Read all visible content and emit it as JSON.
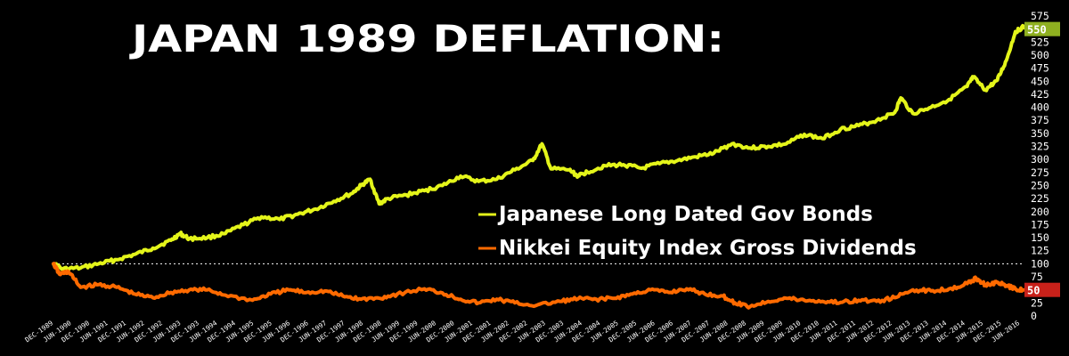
{
  "chart_data": {
    "type": "line",
    "title": "JAPAN 1989 DEFLATION:",
    "xlabel": "",
    "ylabel": "",
    "ylim": [
      0,
      575
    ],
    "yticks": [
      0,
      25,
      50,
      75,
      100,
      125,
      150,
      175,
      200,
      225,
      250,
      275,
      300,
      325,
      350,
      375,
      400,
      425,
      450,
      475,
      500,
      525,
      550,
      575
    ],
    "reference_line": 100,
    "x_tick_labels": [
      "DEC-1989",
      "JUN-1990",
      "DEC-1990",
      "JUN-1991",
      "DEC-1991",
      "JUN-1992",
      "DEC-1992",
      "JUN-1993",
      "DEC-1993",
      "JUN-1994",
      "DEC-1994",
      "JUN-1995",
      "DEC-1995",
      "JUN-1996",
      "DEC-1996",
      "JUN-1997",
      "DEC-1997",
      "JUN-1998",
      "DEC-1998",
      "JUN-1999",
      "DEC-1999",
      "JUN-2000",
      "DEC-2000",
      "JUN-2001",
      "DEC-2001",
      "JUN-2002",
      "DEC-2002",
      "JUN-2003",
      "DEC-2003",
      "JUN-2004",
      "DEC-2004",
      "JUN-2005",
      "DEC-2005",
      "JUN-2006",
      "DEC-2006",
      "JUN-2007",
      "DEC-2007",
      "JUN-2008",
      "DEC-2008",
      "JUN-2009",
      "DEC-2009",
      "JUN-2010",
      "DEC-2010",
      "JUN-2011",
      "DEC-2011",
      "JUN-2012",
      "DEC-2012",
      "JUN-2013",
      "DEC-2013",
      "JUN-2014",
      "DEC-2014",
      "JUN-2015",
      "DEC-2015",
      "JUN-2016"
    ],
    "x_range": [
      "DEC-1989",
      "OCT-2016"
    ],
    "grid": false,
    "legend_position": "center-right",
    "series": [
      {
        "name": "Japanese Long Dated Gov Bonds",
        "color": "#e4f51a",
        "end_label": "550",
        "points": [
          [
            "1989-12",
            100
          ],
          [
            "1990-03",
            90
          ],
          [
            "1990-09",
            92
          ],
          [
            "1991-03",
            100
          ],
          [
            "1991-09",
            108
          ],
          [
            "1992-03",
            118
          ],
          [
            "1992-09",
            130
          ],
          [
            "1993-03",
            145
          ],
          [
            "1993-06",
            158
          ],
          [
            "1993-09",
            148
          ],
          [
            "1994-03",
            150
          ],
          [
            "1994-09",
            158
          ],
          [
            "1995-03",
            175
          ],
          [
            "1995-09",
            190
          ],
          [
            "1996-03",
            185
          ],
          [
            "1996-09",
            195
          ],
          [
            "1997-03",
            205
          ],
          [
            "1997-09",
            220
          ],
          [
            "1998-03",
            235
          ],
          [
            "1998-06",
            250
          ],
          [
            "1998-09",
            262
          ],
          [
            "1998-12",
            215
          ],
          [
            "1999-03",
            225
          ],
          [
            "1999-09",
            232
          ],
          [
            "2000-03",
            240
          ],
          [
            "2000-09",
            250
          ],
          [
            "2001-03",
            268
          ],
          [
            "2001-09",
            258
          ],
          [
            "2002-03",
            262
          ],
          [
            "2002-09",
            280
          ],
          [
            "2003-03",
            298
          ],
          [
            "2003-06",
            330
          ],
          [
            "2003-09",
            282
          ],
          [
            "2004-03",
            280
          ],
          [
            "2004-06",
            268
          ],
          [
            "2004-09",
            276
          ],
          [
            "2005-03",
            288
          ],
          [
            "2005-09",
            290
          ],
          [
            "2006-03",
            283
          ],
          [
            "2006-09",
            292
          ],
          [
            "2007-03",
            298
          ],
          [
            "2007-09",
            305
          ],
          [
            "2008-03",
            312
          ],
          [
            "2008-09",
            330
          ],
          [
            "2009-03",
            322
          ],
          [
            "2009-09",
            325
          ],
          [
            "2010-03",
            330
          ],
          [
            "2010-09",
            348
          ],
          [
            "2011-03",
            340
          ],
          [
            "2011-09",
            358
          ],
          [
            "2012-03",
            365
          ],
          [
            "2012-09",
            375
          ],
          [
            "2013-03",
            390
          ],
          [
            "2013-05",
            418
          ],
          [
            "2013-09",
            388
          ],
          [
            "2014-03",
            400
          ],
          [
            "2014-09",
            415
          ],
          [
            "2015-03",
            440
          ],
          [
            "2015-05",
            458
          ],
          [
            "2015-09",
            433
          ],
          [
            "2016-01",
            452
          ],
          [
            "2016-04",
            490
          ],
          [
            "2016-07",
            545
          ],
          [
            "2016-10",
            555
          ]
        ]
      },
      {
        "name": "Nikkei Equity Index Gross Dividends",
        "color": "#ff6a00",
        "end_label": "50",
        "points": [
          [
            "1989-12",
            100
          ],
          [
            "1990-02",
            80
          ],
          [
            "1990-05",
            85
          ],
          [
            "1990-09",
            55
          ],
          [
            "1991-03",
            60
          ],
          [
            "1991-09",
            55
          ],
          [
            "1992-03",
            42
          ],
          [
            "1992-09",
            35
          ],
          [
            "1993-03",
            45
          ],
          [
            "1993-09",
            50
          ],
          [
            "1994-03",
            50
          ],
          [
            "1994-09",
            40
          ],
          [
            "1995-06",
            30
          ],
          [
            "1995-12",
            42
          ],
          [
            "1996-06",
            50
          ],
          [
            "1996-12",
            45
          ],
          [
            "1997-06",
            48
          ],
          [
            "1997-12",
            38
          ],
          [
            "1998-06",
            32
          ],
          [
            "1998-12",
            34
          ],
          [
            "1999-06",
            42
          ],
          [
            "2000-03",
            52
          ],
          [
            "2000-09",
            44
          ],
          [
            "2001-03",
            32
          ],
          [
            "2001-09",
            25
          ],
          [
            "2002-03",
            32
          ],
          [
            "2002-09",
            25
          ],
          [
            "2003-04",
            20
          ],
          [
            "2003-12",
            28
          ],
          [
            "2004-06",
            33
          ],
          [
            "2004-12",
            32
          ],
          [
            "2005-06",
            34
          ],
          [
            "2005-12",
            42
          ],
          [
            "2006-06",
            50
          ],
          [
            "2006-12",
            45
          ],
          [
            "2007-06",
            52
          ],
          [
            "2007-12",
            42
          ],
          [
            "2008-06",
            38
          ],
          [
            "2008-10",
            25
          ],
          [
            "2009-03",
            18
          ],
          [
            "2009-09",
            28
          ],
          [
            "2010-03",
            34
          ],
          [
            "2010-09",
            30
          ],
          [
            "2011-03",
            28
          ],
          [
            "2011-09",
            26
          ],
          [
            "2012-03",
            30
          ],
          [
            "2012-09",
            28
          ],
          [
            "2013-03",
            35
          ],
          [
            "2013-09",
            50
          ],
          [
            "2014-03",
            48
          ],
          [
            "2014-09",
            52
          ],
          [
            "2015-03",
            62
          ],
          [
            "2015-06",
            72
          ],
          [
            "2015-09",
            60
          ],
          [
            "2016-01",
            64
          ],
          [
            "2016-04",
            58
          ],
          [
            "2016-07",
            52
          ],
          [
            "2016-10",
            50
          ]
        ]
      }
    ]
  }
}
